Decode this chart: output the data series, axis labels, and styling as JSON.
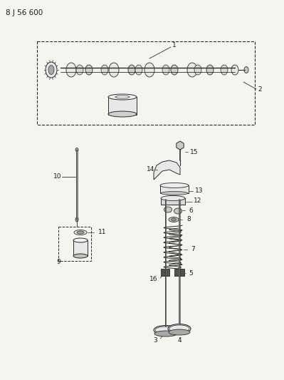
{
  "title": "8 J 56 600",
  "bg_color": "#f5f5f0",
  "line_color": "#2a2a2a",
  "label_color": "#1a1a1a",
  "figsize": [
    3.99,
    5.33
  ],
  "dpi": 100
}
